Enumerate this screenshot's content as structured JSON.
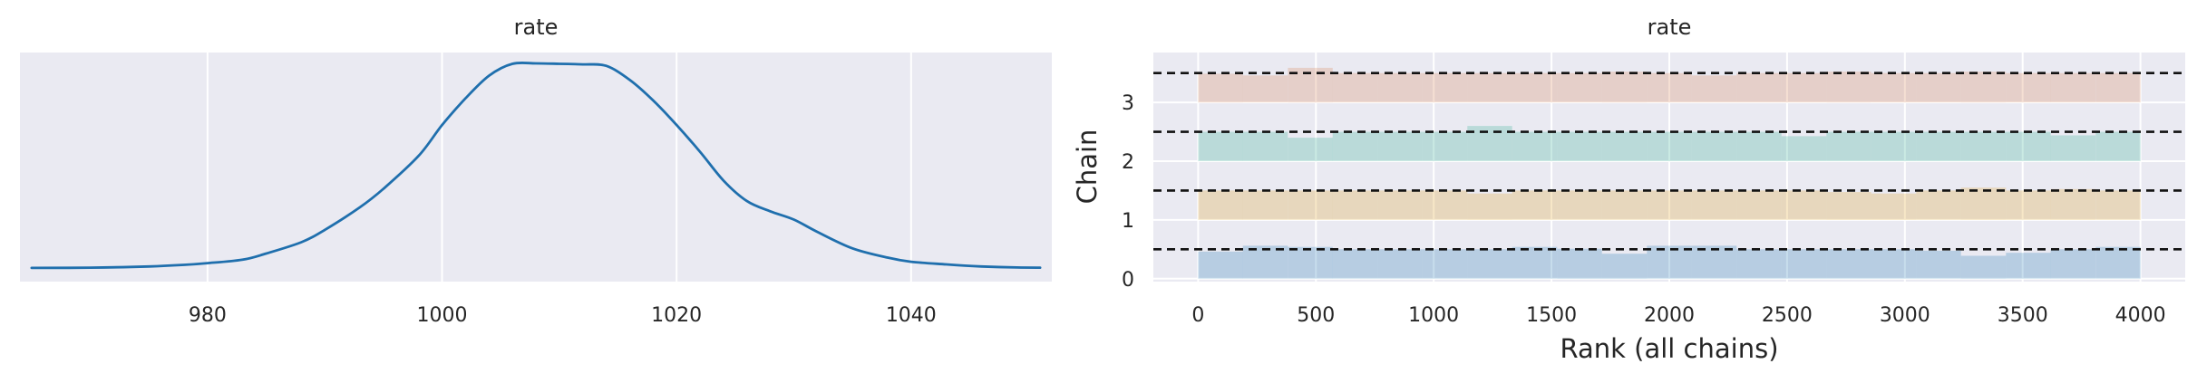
{
  "chart_data": [
    {
      "type": "area",
      "kind": "kde",
      "title": "rate",
      "xlabel": "",
      "ylabel": "",
      "xlim": [
        964,
        1052
      ],
      "ylim": [
        0,
        1.08
      ],
      "x_ticks": [
        980,
        1000,
        1020,
        1040
      ],
      "y_ticks_visible": false,
      "grid": true,
      "line_color": "#1f6fad",
      "background": "#eaeaf2",
      "x": [
        965,
        970,
        975,
        978,
        980,
        983,
        985,
        988,
        990,
        993,
        995,
        998,
        1000,
        1002,
        1004,
        1006,
        1008,
        1010,
        1012,
        1014,
        1016,
        1018,
        1020,
        1022,
        1024,
        1026,
        1028,
        1030,
        1032,
        1035,
        1038,
        1040,
        1043,
        1046,
        1049,
        1051
      ],
      "y": [
        0.005,
        0.006,
        0.012,
        0.02,
        0.028,
        0.045,
        0.075,
        0.13,
        0.19,
        0.3,
        0.39,
        0.55,
        0.7,
        0.83,
        0.94,
        0.998,
        1.0,
        0.998,
        0.995,
        0.988,
        0.92,
        0.82,
        0.7,
        0.57,
        0.43,
        0.33,
        0.28,
        0.24,
        0.18,
        0.1,
        0.055,
        0.035,
        0.022,
        0.012,
        0.007,
        0.006
      ]
    },
    {
      "type": "bar",
      "kind": "rank-histogram",
      "title": "rate",
      "xlabel": "Rank (all chains)",
      "ylabel": "Chain",
      "xlim": [
        -190,
        4190
      ],
      "ylim": [
        -0.05,
        3.85
      ],
      "x_ticks": [
        0,
        500,
        1000,
        1500,
        2000,
        2500,
        3000,
        3500,
        4000
      ],
      "y_ticks": [
        0,
        1,
        2,
        3
      ],
      "grid": true,
      "background": "#eaeaf2",
      "bin_edges": [
        0,
        190,
        381,
        571,
        762,
        952,
        1143,
        1333,
        1524,
        1714,
        1905,
        2095,
        2286,
        2476,
        2667,
        2857,
        3048,
        3238,
        3429,
        3619,
        3810,
        4000
      ],
      "bar_height_scale": 0.5,
      "reference_lines": [
        0.5,
        1.5,
        2.5,
        3.5
      ],
      "series": [
        {
          "name": "0",
          "offset": 0,
          "color": "#1f77b4",
          "values": [
            0.92,
            1.12,
            1.08,
            1.0,
            1.0,
            1.0,
            1.0,
            1.08,
            1.02,
            0.85,
            1.12,
            1.12,
            1.0,
            1.0,
            1.0,
            1.0,
            0.95,
            0.78,
            0.88,
            1.0,
            1.08
          ]
        },
        {
          "name": "1",
          "offset": 1,
          "color": "#e0a020",
          "values": [
            1.0,
            1.0,
            1.0,
            1.0,
            1.0,
            1.0,
            0.9,
            1.0,
            1.0,
            1.0,
            1.0,
            1.0,
            1.0,
            1.0,
            0.95,
            0.9,
            1.0,
            1.1,
            1.0,
            1.05,
            1.0
          ]
        },
        {
          "name": "2",
          "offset": 2,
          "color": "#2aaa90",
          "values": [
            1.0,
            1.0,
            0.8,
            1.0,
            1.0,
            1.0,
            1.2,
            1.0,
            1.0,
            1.0,
            1.0,
            1.0,
            1.0,
            0.85,
            1.0,
            1.0,
            1.0,
            1.0,
            1.0,
            0.88,
            1.0
          ]
        },
        {
          "name": "3",
          "offset": 3,
          "color": "#d98050",
          "values": [
            0.98,
            0.92,
            1.18,
            1.0,
            1.0,
            1.0,
            1.0,
            1.0,
            1.0,
            1.05,
            1.0,
            0.92,
            1.0,
            1.0,
            1.05,
            1.0,
            1.0,
            1.05,
            1.0,
            1.0,
            1.0
          ]
        }
      ]
    }
  ]
}
